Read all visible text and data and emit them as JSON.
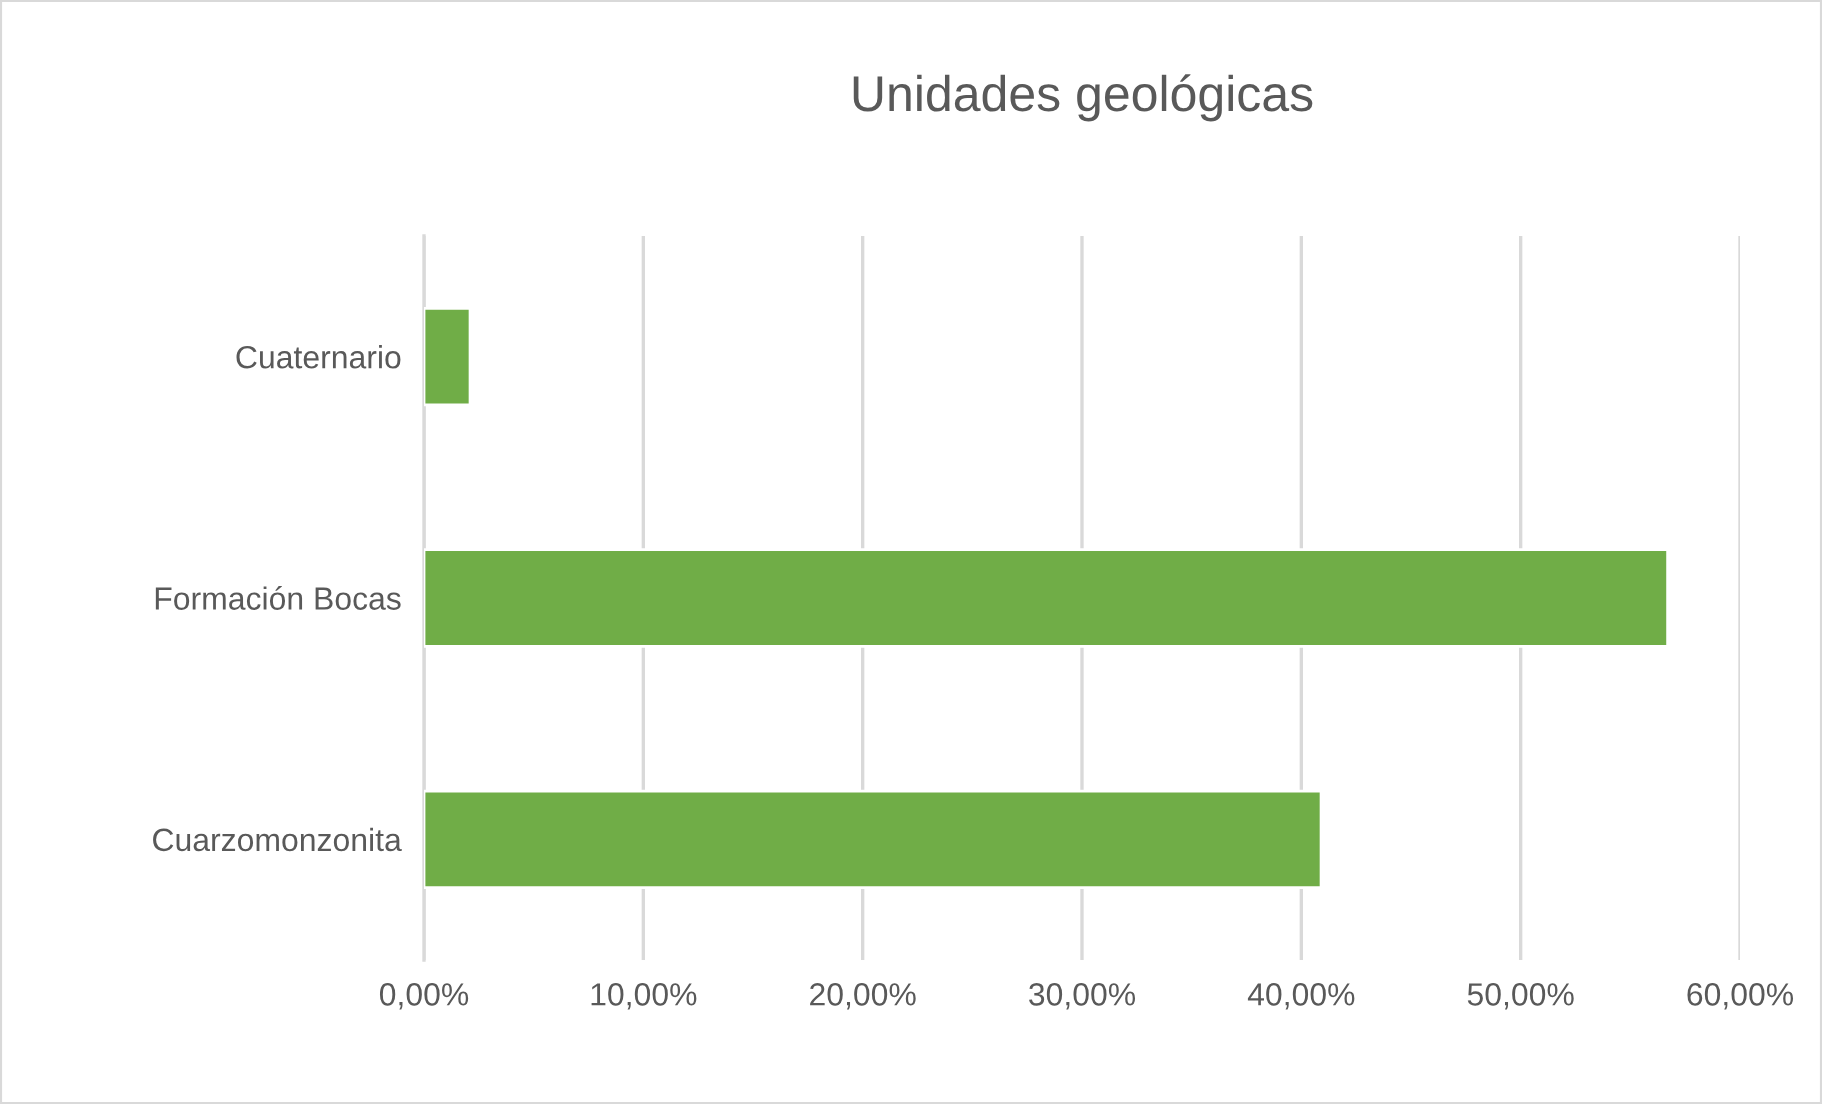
{
  "chart_data": {
    "type": "bar",
    "orientation": "horizontal",
    "title": "Unidades geológicas",
    "categories": [
      "Cuaternario",
      "Formación Bocas",
      "Cuarzomonzonita"
    ],
    "values": [
      2.1,
      56.7,
      40.9
    ],
    "color": "#70ad47",
    "xlim": [
      0,
      60
    ],
    "xticks": [
      {
        "value": 0,
        "label": "0,00%"
      },
      {
        "value": 10,
        "label": "10,00%"
      },
      {
        "value": 20,
        "label": "20,00%"
      },
      {
        "value": 30,
        "label": "30,00%"
      },
      {
        "value": 40,
        "label": "40,00%"
      },
      {
        "value": 50,
        "label": "50,00%"
      },
      {
        "value": 60,
        "label": "60,00%"
      }
    ],
    "grid": "x",
    "legend": false
  }
}
